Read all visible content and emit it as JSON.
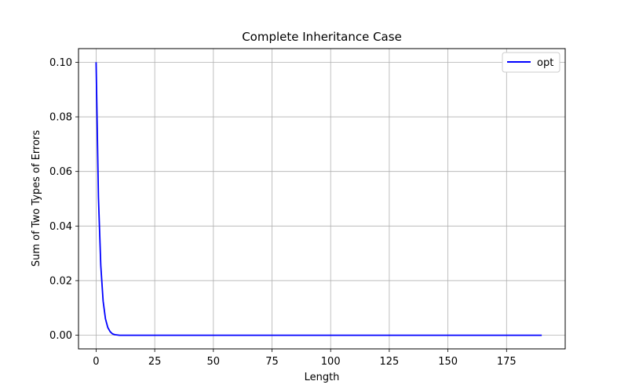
{
  "chart_data": {
    "type": "line",
    "title": "Complete Inheritance Case",
    "xlabel": "Length",
    "ylabel": "Sum of Two Types of Errors",
    "xlim": [
      -7.5,
      200
    ],
    "ylim": [
      -0.005,
      0.105
    ],
    "xticks": [
      0,
      25,
      50,
      75,
      100,
      125,
      150,
      175
    ],
    "yticks": [
      0.0,
      0.02,
      0.04,
      0.06,
      0.08,
      0.1
    ],
    "ytick_labels": [
      "0.00",
      "0.02",
      "0.04",
      "0.06",
      "0.08",
      "0.10"
    ],
    "grid": true,
    "legend": "upper-right",
    "series": [
      {
        "name": "opt",
        "color": "#0000ff",
        "x": [
          0,
          1,
          2,
          3,
          4,
          5,
          6,
          7,
          8,
          9,
          10,
          20,
          50,
          100,
          150,
          190
        ],
        "y": [
          0.1,
          0.0505,
          0.0255,
          0.0125,
          0.006,
          0.0028,
          0.0013,
          0.0005,
          0.0002,
          0.0001,
          0.0,
          0.0,
          0.0,
          0.0,
          0.0,
          0.0
        ]
      }
    ]
  }
}
